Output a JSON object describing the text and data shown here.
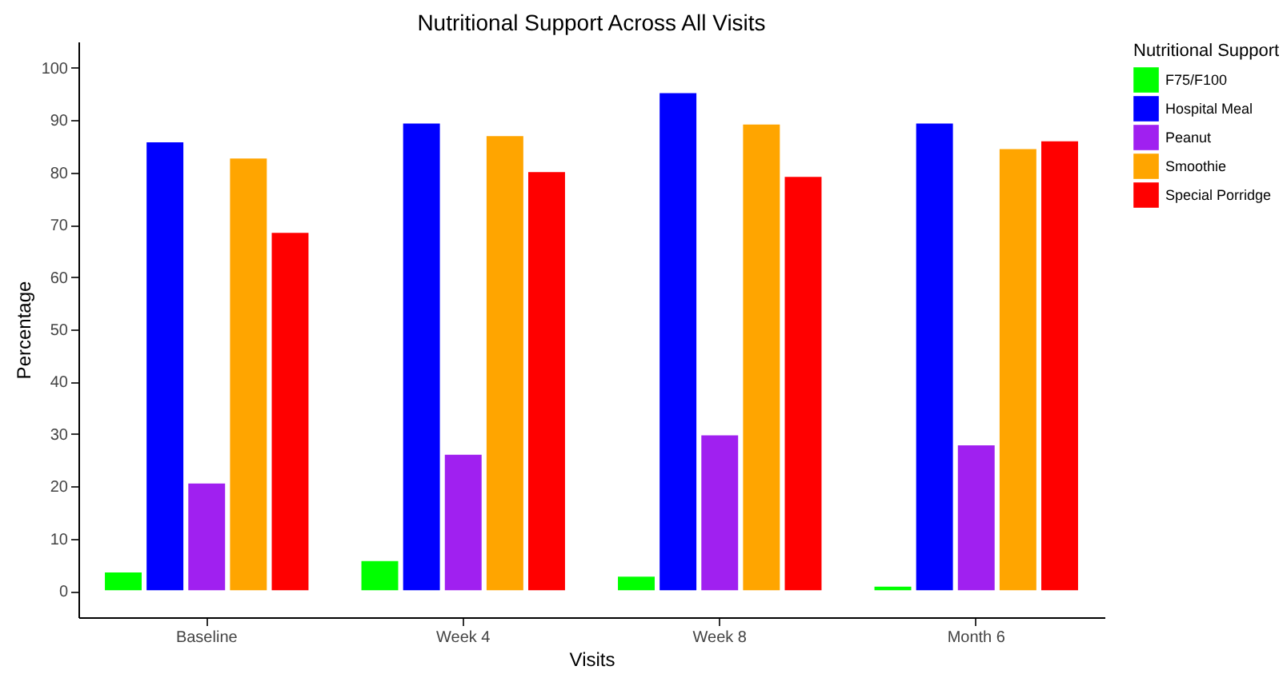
{
  "chart_data": {
    "type": "bar",
    "title": "Nutritional Support Across All Visits",
    "xlabel": "Visits",
    "ylabel": "Percentage",
    "legend_title": "Nutritional Support",
    "categories": [
      "Baseline",
      "Week 4",
      "Week 8",
      "Month 6"
    ],
    "series": [
      {
        "name": "F75/F100",
        "color": "#00ff00",
        "values": [
          3.7,
          5.9,
          2.9,
          1.0
        ]
      },
      {
        "name": "Hospital Meal",
        "color": "#0000ff",
        "values": [
          85.9,
          89.5,
          95.3,
          89.5
        ]
      },
      {
        "name": "Peanut",
        "color": "#a020f0",
        "values": [
          20.7,
          26.2,
          29.9,
          28.0
        ]
      },
      {
        "name": "Smoothie",
        "color": "#ffa500",
        "values": [
          82.8,
          87.1,
          89.3,
          84.6
        ]
      },
      {
        "name": "Special Porridge",
        "color": "#ff0000",
        "values": [
          68.6,
          80.2,
          79.3,
          86.1
        ]
      }
    ],
    "ylim": [
      -5,
      105
    ],
    "yticks": [
      0,
      10,
      20,
      30,
      40,
      50,
      60,
      70,
      80,
      90,
      100
    ],
    "grid": false,
    "legend": "right"
  }
}
